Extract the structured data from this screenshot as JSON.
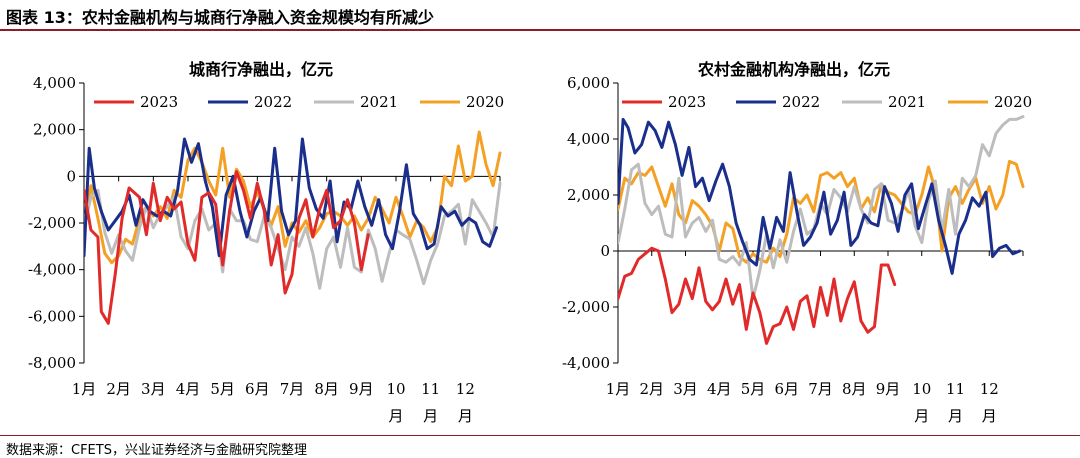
{
  "figure": {
    "title": "图表 13：农村金融机构与城商行净融入资金规模均有所减少",
    "source": "数据来源：CFETS，兴业证券经济与金融研究院整理"
  },
  "chart_data": [
    {
      "type": "line",
      "title": "城商行净融出，亿元",
      "ylim": [
        -8000,
        4000
      ],
      "yticks": [
        4000,
        2000,
        0,
        -2000,
        -4000,
        -6000,
        -8000
      ],
      "ytick_labels": [
        "4,000",
        "2,000",
        "0",
        "-2,000",
        "-4,000",
        "-6,000",
        "-8,000"
      ],
      "xlim": [
        1,
        13
      ],
      "month_ticks": [
        {
          "l1": "1月",
          "l2": ""
        },
        {
          "l1": "2月",
          "l2": ""
        },
        {
          "l1": "3月",
          "l2": ""
        },
        {
          "l1": "4月",
          "l2": ""
        },
        {
          "l1": "5月",
          "l2": ""
        },
        {
          "l1": "6月",
          "l2": ""
        },
        {
          "l1": "7月",
          "l2": ""
        },
        {
          "l1": "8月",
          "l2": ""
        },
        {
          "l1": "9月",
          "l2": ""
        },
        {
          "l1": "10",
          "l2": "月"
        },
        {
          "l1": "11",
          "l2": "月"
        },
        {
          "l1": "12",
          "l2": "月"
        }
      ],
      "grid": false,
      "legend": "top",
      "series": [
        {
          "name": "2023",
          "color": "#e12a2a",
          "x": [
            1.0,
            1.2,
            1.4,
            1.5,
            1.7,
            1.9,
            2.1,
            2.3,
            2.6,
            2.8,
            3.0,
            3.2,
            3.4,
            3.6,
            3.8,
            4.0,
            4.2,
            4.4,
            4.6,
            4.8,
            5.0,
            5.2,
            5.4,
            5.6,
            5.8,
            6.0,
            6.2,
            6.4,
            6.6,
            6.8,
            7.0,
            7.2,
            7.4,
            7.6,
            7.8,
            8.0,
            8.2,
            8.4,
            8.6,
            8.8,
            9.0,
            9.2
          ],
          "y": [
            -600,
            -2300,
            -2600,
            -5800,
            -6300,
            -4200,
            -1800,
            -500,
            -900,
            -2500,
            -300,
            -1900,
            -900,
            -1400,
            -1100,
            -2900,
            -3600,
            -900,
            -700,
            -1200,
            -3800,
            -1500,
            200,
            -600,
            -1800,
            -300,
            -1500,
            -3800,
            -2500,
            -5000,
            -4200,
            -1800,
            -1000,
            -2600,
            -1400,
            -600,
            -2200,
            -1900,
            -1000,
            -2000,
            -4000,
            -2500
          ]
        },
        {
          "name": "2022",
          "color": "#1a2e8c",
          "x": [
            1.0,
            1.15,
            1.3,
            1.5,
            1.7,
            1.9,
            2.1,
            2.3,
            2.5,
            2.7,
            2.9,
            3.1,
            3.3,
            3.5,
            3.7,
            3.9,
            4.1,
            4.3,
            4.5,
            4.7,
            4.9,
            5.1,
            5.3,
            5.5,
            5.7,
            5.9,
            6.1,
            6.3,
            6.5,
            6.7,
            6.9,
            7.1,
            7.3,
            7.5,
            7.7,
            7.9,
            8.1,
            8.3,
            8.5,
            8.7,
            8.9,
            9.1,
            9.3,
            9.5,
            9.7,
            9.9,
            10.1,
            10.3,
            10.5,
            10.7,
            10.9,
            11.1,
            11.3,
            11.5,
            11.7,
            11.9,
            12.1,
            12.3,
            12.5,
            12.7,
            12.9
          ],
          "y": [
            -3400,
            1200,
            -500,
            -1500,
            -2300,
            -1900,
            -1500,
            -800,
            -2100,
            -1000,
            -1500,
            -1700,
            -1500,
            -1700,
            -600,
            1600,
            600,
            1400,
            -200,
            -1300,
            -3400,
            -800,
            0,
            -1500,
            -2600,
            -1500,
            -900,
            -1900,
            1200,
            -1500,
            -2500,
            -1900,
            1600,
            -500,
            -1400,
            -1800,
            -200,
            -2800,
            -1100,
            -1400,
            -200,
            -1300,
            -2100,
            -1000,
            -2500,
            -3100,
            -1500,
            500,
            -1600,
            -2100,
            -3100,
            -2900,
            -1300,
            -1700,
            -1500,
            -2100,
            -1800,
            -2000,
            -2800,
            -3000,
            -2200
          ]
        },
        {
          "name": "2021",
          "color": "#bdbdbd",
          "x": [
            1.0,
            1.2,
            1.4,
            1.6,
            1.8,
            2.0,
            2.2,
            2.4,
            2.6,
            2.8,
            3.0,
            3.2,
            3.4,
            3.6,
            3.8,
            4.0,
            4.2,
            4.4,
            4.6,
            4.8,
            5.0,
            5.2,
            5.4,
            5.6,
            5.8,
            6.0,
            6.2,
            6.4,
            6.6,
            6.8,
            7.0,
            7.2,
            7.4,
            7.6,
            7.8,
            8.0,
            8.2,
            8.4,
            8.6,
            8.8,
            9.0,
            9.2,
            9.4,
            9.6,
            9.8,
            10.0,
            10.2,
            10.4,
            10.6,
            10.8,
            11.0,
            11.2,
            11.4,
            11.6,
            11.8,
            12.0,
            12.2,
            12.4,
            12.6,
            12.8,
            13.0
          ],
          "y": [
            -2200,
            -900,
            -600,
            -2400,
            -3300,
            -2500,
            -3200,
            -3600,
            -2200,
            -1300,
            -2200,
            -1600,
            -1300,
            -900,
            -2600,
            -3100,
            -1900,
            -1400,
            -2300,
            -2000,
            -4100,
            -1400,
            -1900,
            -1900,
            -2700,
            -2800,
            -1700,
            -2200,
            -3100,
            -4000,
            -2600,
            -3000,
            -2200,
            -3300,
            -4800,
            -3100,
            -2600,
            -3900,
            -2200,
            -3900,
            -4100,
            -2300,
            -3100,
            -4500,
            -3300,
            -2300,
            -2500,
            -2700,
            -3600,
            -4600,
            -3600,
            -2900,
            -1700,
            -1500,
            -1200,
            -2900,
            -1000,
            -1500,
            -2000,
            -2600,
            -300
          ]
        },
        {
          "name": "2020",
          "color": "#f4a024",
          "x": [
            1.0,
            1.2,
            1.4,
            1.6,
            1.8,
            2.0,
            2.2,
            2.4,
            2.6,
            2.8,
            3.0,
            3.2,
            3.4,
            3.6,
            3.8,
            4.0,
            4.2,
            4.4,
            4.6,
            4.8,
            5.0,
            5.2,
            5.4,
            5.6,
            5.8,
            6.0,
            6.2,
            6.4,
            6.6,
            6.8,
            7.0,
            7.2,
            7.4,
            7.6,
            7.8,
            8.0,
            8.2,
            8.4,
            8.6,
            8.8,
            9.0,
            9.2,
            9.4,
            9.6,
            9.8,
            10.0,
            10.2,
            10.4,
            10.6,
            10.8,
            11.0,
            11.2,
            11.4,
            11.6,
            11.8,
            12.0,
            12.2,
            12.4,
            12.6,
            12.8,
            13.0
          ],
          "y": [
            -2000,
            -400,
            -1800,
            -3300,
            -3700,
            -3400,
            -2700,
            -2900,
            -1800,
            -1300,
            -1700,
            -1300,
            -1800,
            -600,
            -900,
            700,
            1200,
            600,
            -200,
            -800,
            1200,
            -900,
            300,
            -200,
            -1300,
            -700,
            -1400,
            -2100,
            -1300,
            -3000,
            -2000,
            -2400,
            -1900,
            -2600,
            -2200,
            -1600,
            -1500,
            -1700,
            -2100,
            -1700,
            -2300,
            -1800,
            -900,
            -1400,
            -2000,
            -900,
            -1700,
            -2600,
            -1900,
            -2200,
            -2800,
            -2200,
            0,
            -400,
            1300,
            -200,
            0,
            1900,
            500,
            -400,
            1000
          ]
        }
      ]
    },
    {
      "type": "line",
      "title": "农村金融机构净融出，亿元",
      "ylim": [
        -4000,
        6000
      ],
      "yticks": [
        6000,
        4000,
        2000,
        0,
        -2000,
        -4000
      ],
      "ytick_labels": [
        "6,000",
        "4,000",
        "2,000",
        "0",
        "-2,000",
        "-4,000"
      ],
      "xlim": [
        1,
        13
      ],
      "month_ticks": [
        {
          "l1": "1月",
          "l2": ""
        },
        {
          "l1": "2月",
          "l2": ""
        },
        {
          "l1": "3月",
          "l2": ""
        },
        {
          "l1": "4月",
          "l2": ""
        },
        {
          "l1": "5月",
          "l2": ""
        },
        {
          "l1": "6月",
          "l2": ""
        },
        {
          "l1": "7月",
          "l2": ""
        },
        {
          "l1": "8月",
          "l2": ""
        },
        {
          "l1": "9月",
          "l2": ""
        },
        {
          "l1": "10",
          "l2": "月"
        },
        {
          "l1": "11",
          "l2": "月"
        },
        {
          "l1": "12",
          "l2": "月"
        }
      ],
      "grid": false,
      "legend": "top",
      "series": [
        {
          "name": "2023",
          "color": "#e12a2a",
          "x": [
            1.0,
            1.2,
            1.4,
            1.6,
            1.8,
            2.0,
            2.2,
            2.4,
            2.6,
            2.8,
            3.0,
            3.2,
            3.4,
            3.6,
            3.8,
            4.0,
            4.2,
            4.4,
            4.6,
            4.8,
            5.0,
            5.2,
            5.4,
            5.6,
            5.8,
            6.0,
            6.2,
            6.4,
            6.6,
            6.8,
            7.0,
            7.2,
            7.4,
            7.6,
            7.8,
            8.0,
            8.2,
            8.4,
            8.6,
            8.8,
            9.0,
            9.2
          ],
          "y": [
            -1700,
            -900,
            -800,
            -300,
            -100,
            100,
            0,
            -1000,
            -2200,
            -1900,
            -1000,
            -1700,
            -600,
            -1800,
            -2100,
            -1800,
            -1000,
            -1900,
            -1200,
            -2800,
            -1500,
            -2200,
            -3300,
            -2700,
            -2600,
            -2000,
            -2800,
            -1800,
            -1600,
            -2700,
            -1300,
            -2300,
            -1000,
            -2500,
            -1700,
            -1100,
            -2500,
            -2900,
            -2700,
            -500,
            -500,
            -1200
          ]
        },
        {
          "name": "2022",
          "color": "#1a2e8c",
          "x": [
            1.0,
            1.15,
            1.3,
            1.5,
            1.7,
            1.9,
            2.1,
            2.3,
            2.5,
            2.7,
            2.9,
            3.1,
            3.3,
            3.5,
            3.7,
            3.9,
            4.1,
            4.3,
            4.5,
            4.7,
            4.9,
            5.1,
            5.3,
            5.5,
            5.7,
            5.9,
            6.1,
            6.3,
            6.5,
            6.7,
            6.9,
            7.1,
            7.3,
            7.5,
            7.7,
            7.9,
            8.1,
            8.3,
            8.5,
            8.7,
            8.9,
            9.1,
            9.3,
            9.5,
            9.7,
            9.9,
            10.1,
            10.3,
            10.5,
            10.7,
            10.9,
            11.1,
            11.3,
            11.5,
            11.7,
            11.9,
            12.1,
            12.3,
            12.5,
            12.7,
            12.9
          ],
          "y": [
            1700,
            4700,
            4400,
            3500,
            3800,
            4600,
            4300,
            3700,
            4600,
            3800,
            2700,
            3700,
            2300,
            2600,
            1800,
            2500,
            3100,
            2300,
            1000,
            300,
            -300,
            -500,
            1200,
            100,
            1200,
            700,
            2800,
            1400,
            200,
            500,
            1000,
            2100,
            600,
            1100,
            2100,
            200,
            500,
            1300,
            1000,
            900,
            2300,
            1700,
            700,
            2000,
            2400,
            800,
            1600,
            2400,
            1100,
            200,
            -800,
            600,
            1100,
            1900,
            1600,
            2100,
            -200,
            100,
            200,
            -100,
            0
          ]
        },
        {
          "name": "2021",
          "color": "#bdbdbd",
          "x": [
            1.0,
            1.2,
            1.4,
            1.6,
            1.8,
            2.0,
            2.2,
            2.4,
            2.6,
            2.8,
            3.0,
            3.2,
            3.4,
            3.6,
            3.8,
            4.0,
            4.2,
            4.4,
            4.6,
            4.8,
            5.0,
            5.2,
            5.4,
            5.6,
            5.8,
            6.0,
            6.2,
            6.4,
            6.6,
            6.8,
            7.0,
            7.2,
            7.4,
            7.6,
            7.8,
            8.0,
            8.2,
            8.4,
            8.6,
            8.8,
            9.0,
            9.2,
            9.4,
            9.6,
            9.8,
            10.0,
            10.2,
            10.4,
            10.6,
            10.8,
            11.0,
            11.2,
            11.4,
            11.6,
            11.8,
            12.0,
            12.2,
            12.4,
            12.6,
            12.8,
            13.0
          ],
          "y": [
            300,
            1500,
            2900,
            3100,
            1700,
            1300,
            1600,
            600,
            500,
            2600,
            500,
            1000,
            1200,
            700,
            1100,
            -300,
            -400,
            -200,
            -500,
            300,
            -1700,
            -700,
            600,
            -600,
            400,
            -400,
            700,
            1500,
            600,
            800,
            1700,
            1300,
            2200,
            1900,
            1400,
            2300,
            1500,
            1000,
            2200,
            2400,
            1100,
            1000,
            1400,
            2200,
            900,
            300,
            1800,
            2500,
            700,
            2200,
            600,
            2600,
            2300,
            2700,
            3800,
            3400,
            4200,
            4500,
            4700,
            4700,
            4800
          ]
        },
        {
          "name": "2020",
          "color": "#f4a024",
          "x": [
            1.0,
            1.2,
            1.4,
            1.6,
            1.8,
            2.0,
            2.2,
            2.4,
            2.6,
            2.8,
            3.0,
            3.2,
            3.4,
            3.6,
            3.8,
            4.0,
            4.2,
            4.4,
            4.6,
            4.8,
            5.0,
            5.2,
            5.4,
            5.6,
            5.8,
            6.0,
            6.2,
            6.4,
            6.6,
            6.8,
            7.0,
            7.2,
            7.4,
            7.6,
            7.8,
            8.0,
            8.2,
            8.4,
            8.6,
            8.8,
            9.0,
            9.2,
            9.4,
            9.6,
            9.8,
            10.0,
            10.2,
            10.4,
            10.6,
            10.8,
            11.0,
            11.2,
            11.4,
            11.6,
            11.8,
            12.0,
            12.2,
            12.4,
            12.6,
            12.8,
            13.0
          ],
          "y": [
            1500,
            2600,
            2400,
            2800,
            2700,
            3000,
            2300,
            1600,
            2400,
            1300,
            1000,
            1800,
            1600,
            1300,
            900,
            0,
            1000,
            800,
            -200,
            -400,
            -100,
            -300,
            -400,
            100,
            -200,
            600,
            1900,
            1700,
            2000,
            1400,
            2700,
            2800,
            2600,
            2800,
            2300,
            2600,
            1500,
            1900,
            1400,
            2400,
            2100,
            2000,
            1700,
            1400,
            1300,
            2000,
            3000,
            2200,
            0,
            1900,
            2300,
            1700,
            2200,
            2600,
            1700,
            2300,
            1500,
            2000,
            3200,
            3100,
            2300
          ]
        }
      ]
    }
  ]
}
